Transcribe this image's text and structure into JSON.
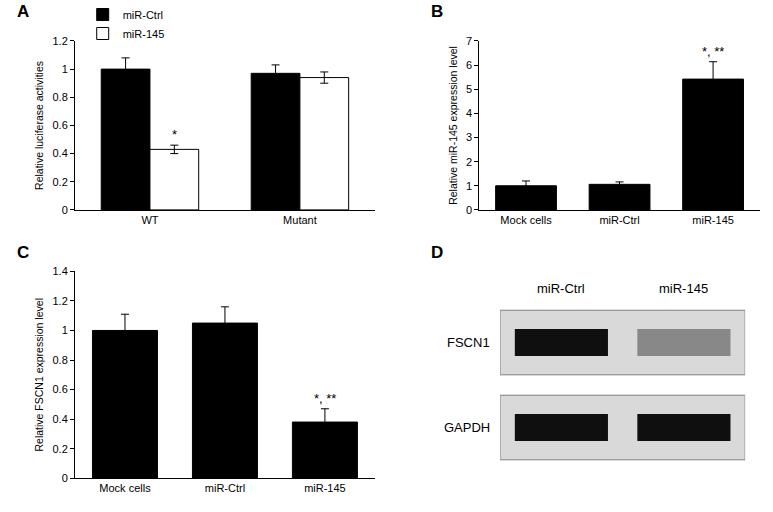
{
  "chart_data": [
    {
      "panel": "A",
      "type": "bar",
      "y_label": "Relative luciferase activities",
      "categories": [
        "WT",
        "Mutant"
      ],
      "series": [
        {
          "name": "miR-Ctrl",
          "color": "#000000",
          "values": [
            1.0,
            0.97
          ],
          "errors": [
            0.08,
            0.06
          ]
        },
        {
          "name": "miR-145",
          "color": "#ffffff",
          "values": [
            0.43,
            0.94
          ],
          "errors": [
            0.03,
            0.04
          ]
        }
      ],
      "ylim": [
        0,
        1.2
      ],
      "yticks": [
        0,
        0.2,
        0.4,
        0.6,
        0.8,
        1,
        1.2
      ],
      "legend": "upper left",
      "grid": false,
      "annotations": [
        {
          "text": "*",
          "category": "WT",
          "series": "miR-145"
        }
      ]
    },
    {
      "panel": "B",
      "type": "bar",
      "y_label": "Relative miR-145 expression level",
      "categories": [
        "Mock cells",
        "miR-Ctrl",
        "miR-145"
      ],
      "values": [
        1.0,
        1.06,
        5.42
      ],
      "errors": [
        0.2,
        0.1,
        0.72
      ],
      "color": "#000000",
      "ylim": [
        0,
        7
      ],
      "yticks": [
        0,
        1,
        2,
        3,
        4,
        5,
        6,
        7
      ],
      "grid": false,
      "annotations": [
        {
          "text": "*, **",
          "category": "miR-145"
        }
      ]
    },
    {
      "panel": "C",
      "type": "bar",
      "y_label": "Relative FSCN1 expression level",
      "categories": [
        "Mock cells",
        "miR-Ctrl",
        "miR-145"
      ],
      "values": [
        1.0,
        1.05,
        0.38
      ],
      "errors": [
        0.11,
        0.11,
        0.09
      ],
      "color": "#000000",
      "ylim": [
        0,
        1.4
      ],
      "yticks": [
        0,
        0.2,
        0.4,
        0.6,
        0.8,
        1,
        1.2,
        1.4
      ],
      "grid": false,
      "annotations": [
        {
          "text": "*, **",
          "category": "miR-145"
        }
      ]
    },
    {
      "panel": "D",
      "type": "blot",
      "lanes": [
        "miR-Ctrl",
        "miR-145"
      ],
      "rows": [
        {
          "label": "FSCN1",
          "values": [
            1.0,
            0.4
          ]
        },
        {
          "label": "GAPDH",
          "values": [
            1.0,
            1.0
          ]
        }
      ]
    }
  ]
}
